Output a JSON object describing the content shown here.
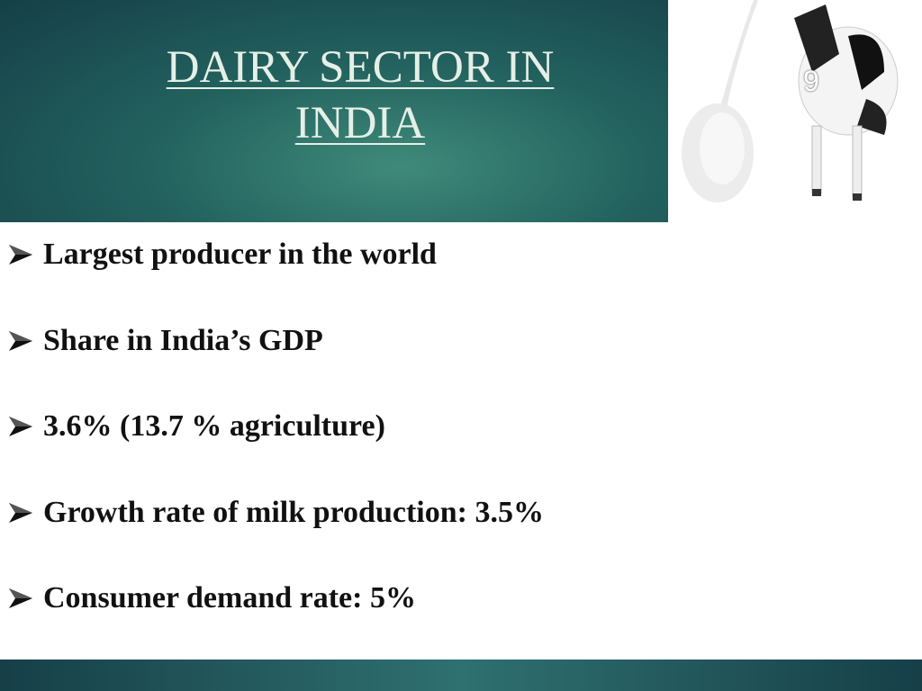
{
  "slide": {
    "title": "DAIRY SECTOR IN INDIA",
    "page_number": "9",
    "bullets": [
      "Largest producer in the world",
      "Share in India’s GDP",
      "3.6% (13.7 %  agriculture)",
      "Growth rate of milk production: 3.5%",
      "Consumer demand rate:  5%"
    ]
  }
}
